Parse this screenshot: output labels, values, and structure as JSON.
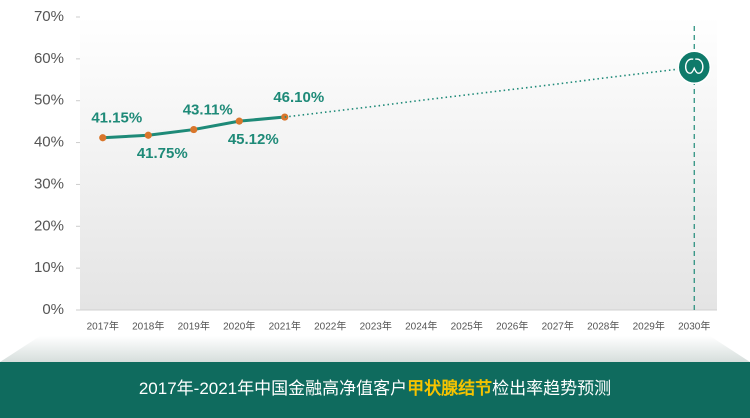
{
  "chart_data": {
    "type": "line",
    "title": [
      "2017年-2021年中国金融高净值客户",
      "甲状腺结节",
      "检出率趋势预测"
    ],
    "categories": [
      "2017年",
      "2018年",
      "2019年",
      "2020年",
      "2021年",
      "2022年",
      "2023年",
      "2024年",
      "2025年",
      "2026年",
      "2027年",
      "2028年",
      "2029年",
      "2030年"
    ],
    "series": [
      {
        "color": "#1e8a78",
        "marker_color": "#d9762b",
        "line_style": "solid",
        "values": [
          41.15,
          41.75,
          43.11,
          45.12,
          46.1,
          null,
          null,
          null,
          null,
          null,
          null,
          null,
          null,
          null
        ],
        "value_labels": [
          "41.15%",
          "41.75%",
          "43.11%",
          "45.12%",
          "46.10%",
          null,
          null,
          null,
          null,
          null,
          null,
          null,
          null,
          null
        ]
      },
      {
        "color": "#1e8a78",
        "line_style": "dotted",
        "values": [
          null,
          null,
          null,
          null,
          46.1,
          47.4,
          48.7,
          50.1,
          51.4,
          52.7,
          54.0,
          55.4,
          56.7,
          58.0
        ]
      }
    ],
    "ylim": [
      0,
      70
    ],
    "yticks": [
      {
        "value": 0,
        "label": "0%"
      },
      {
        "value": 10,
        "label": "10%"
      },
      {
        "value": 20,
        "label": "20%"
      },
      {
        "value": 30,
        "label": "30%"
      },
      {
        "value": 40,
        "label": "40%"
      },
      {
        "value": 50,
        "label": "50%"
      },
      {
        "value": 60,
        "label": "60%"
      },
      {
        "value": 70,
        "label": "70%"
      }
    ],
    "grid": false
  }
}
